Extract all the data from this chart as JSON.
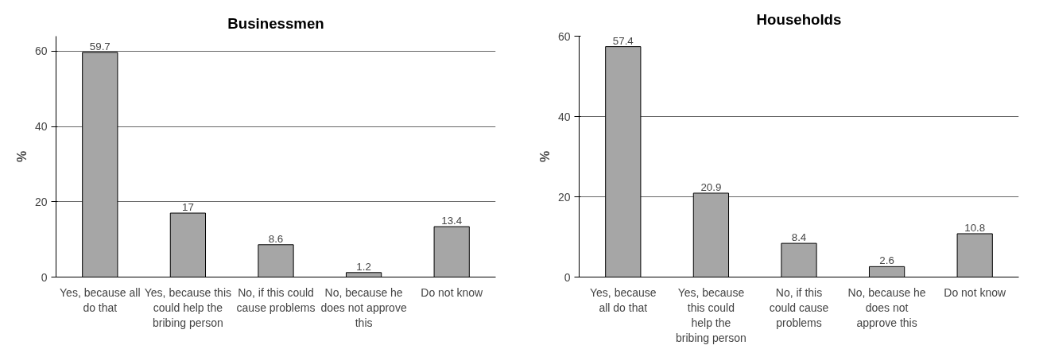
{
  "chart_data": [
    {
      "type": "bar",
      "title": "Businessmen",
      "ylabel": "%",
      "categories": [
        "Yes, because all do that",
        "Yes, because this could help the bribing person",
        "No, if this could cause problems",
        "No, because he does not approve this",
        "Do not know"
      ],
      "values": [
        59.7,
        17,
        8.6,
        1.2,
        13.4
      ],
      "color": "#a6a6a6",
      "ylim": [
        0,
        64
      ],
      "yticks": [
        0,
        20,
        40,
        60
      ],
      "grid": "y",
      "data_labels": true
    },
    {
      "type": "bar",
      "title": "Households",
      "ylabel": "%",
      "categories": [
        "Yes, because all do that",
        "Yes, because this could help the bribing person",
        "No, if this could cause problems",
        "No, because he does not approve this",
        "Do not know"
      ],
      "values": [
        57.4,
        20.9,
        8.4,
        2.6,
        10.8
      ],
      "color": "#a6a6a6",
      "ylim": [
        0,
        60
      ],
      "yticks": [
        0,
        20,
        40,
        60
      ],
      "grid": "y",
      "data_labels": true
    }
  ]
}
